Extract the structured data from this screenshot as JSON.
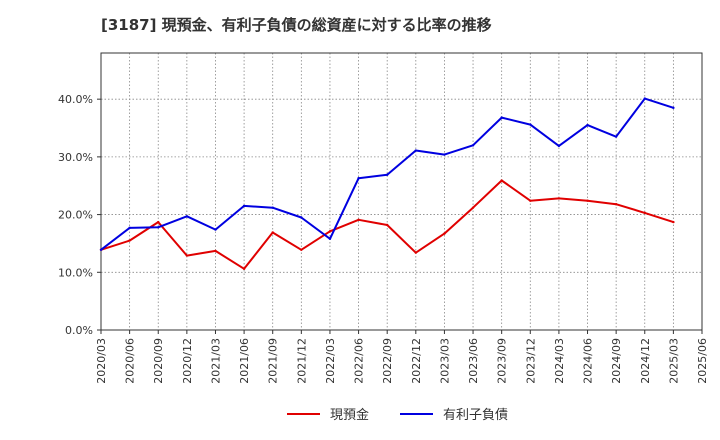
{
  "chart_data": {
    "type": "line",
    "title": "[3187]  現預金、有利子負債の総資産に対する比率の推移",
    "xlabel": "",
    "ylabel": "",
    "categories": [
      "2020/03",
      "2020/06",
      "2020/09",
      "2020/12",
      "2021/03",
      "2021/06",
      "2021/09",
      "2021/12",
      "2022/03",
      "2022/06",
      "2022/09",
      "2022/12",
      "2023/03",
      "2023/06",
      "2023/09",
      "2023/12",
      "2024/03",
      "2024/06",
      "2024/09",
      "2024/12",
      "2025/03",
      "2025/06"
    ],
    "ylim": [
      0,
      48
    ],
    "yticks": [
      0,
      10,
      20,
      30,
      40
    ],
    "ytick_labels": [
      "0.0%",
      "10.0%",
      "20.0%",
      "30.0%",
      "40.0%"
    ],
    "grid": true,
    "legend_position": "bottom-center",
    "series": [
      {
        "name": "現預金",
        "color": "#e00000",
        "values": [
          13.9,
          15.5,
          18.7,
          12.9,
          13.7,
          10.6,
          16.9,
          13.9,
          17.1,
          19.1,
          18.2,
          13.4,
          16.7,
          21.2,
          25.9,
          22.4,
          22.8,
          22.4,
          21.8,
          20.3,
          18.7,
          null
        ]
      },
      {
        "name": "有利子負債",
        "color": "#0000e0",
        "values": [
          13.9,
          17.7,
          17.8,
          19.7,
          17.4,
          21.5,
          21.2,
          19.5,
          15.8,
          26.3,
          26.9,
          31.1,
          30.4,
          32.0,
          36.8,
          35.6,
          31.9,
          35.5,
          33.5,
          40.1,
          38.5,
          null
        ]
      }
    ]
  }
}
